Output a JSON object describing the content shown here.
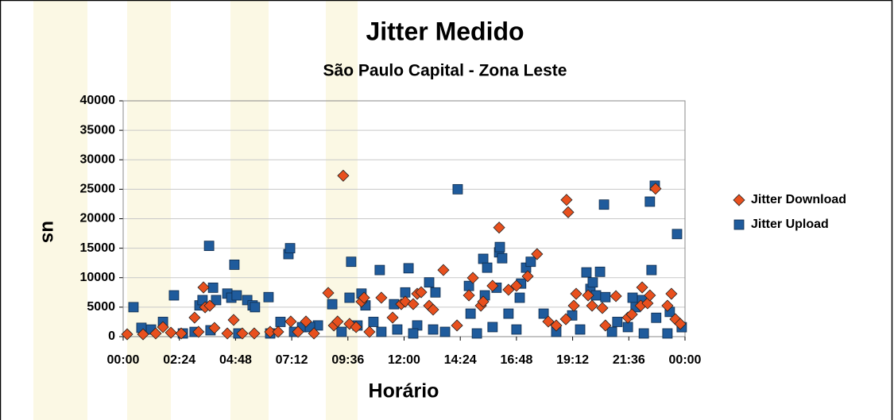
{
  "chart_data": {
    "type": "scatter",
    "title": "Jitter Medido",
    "subtitle": "São Paulo Capital - Zona Leste",
    "x_label": "Horário",
    "y_label": "us",
    "xlim": [
      0,
      24
    ],
    "ylim": [
      0,
      40000
    ],
    "xticks": [
      {
        "value": 0,
        "label": "00:00"
      },
      {
        "value": 2.4,
        "label": "02:24"
      },
      {
        "value": 4.8,
        "label": "04:48"
      },
      {
        "value": 7.2,
        "label": "07:12"
      },
      {
        "value": 9.6,
        "label": "09:36"
      },
      {
        "value": 12,
        "label": "12:00"
      },
      {
        "value": 14.4,
        "label": "14:24"
      },
      {
        "value": 16.8,
        "label": "16:48"
      },
      {
        "value": 19.2,
        "label": "19:12"
      },
      {
        "value": 21.6,
        "label": "21:36"
      },
      {
        "value": 24,
        "label": "00:00"
      }
    ],
    "yticks": [
      0,
      5000,
      10000,
      15000,
      20000,
      25000,
      30000,
      35000,
      40000
    ],
    "grid": true,
    "legend": "right",
    "series": [
      {
        "name": "Jitter Download",
        "color": "#e8501e",
        "marker": "diamond",
        "x": [
          0.17,
          0.85,
          1.39,
          1.7,
          2.04,
          2.48,
          3.05,
          3.22,
          3.43,
          3.5,
          3.7,
          3.9,
          4.45,
          4.72,
          5.09,
          5.6,
          6.28,
          6.62,
          7.16,
          7.47,
          7.81,
          8.15,
          8.76,
          9.0,
          9.16,
          9.4,
          9.67,
          9.95,
          10.18,
          10.29,
          10.52,
          11.03,
          11.51,
          11.88,
          12.05,
          12.39,
          12.56,
          12.73,
          13.07,
          13.24,
          13.68,
          14.26,
          14.77,
          14.94,
          15.28,
          15.38,
          15.78,
          16.06,
          16.46,
          16.8,
          17.28,
          17.68,
          18.16,
          18.5,
          18.91,
          18.94,
          19.01,
          19.25,
          19.35,
          19.86,
          20.03,
          20.47,
          20.6,
          21.05,
          21.56,
          21.73,
          22.11,
          22.17,
          22.4,
          22.5,
          22.74,
          23.25,
          23.42,
          23.59,
          23.8
        ],
        "values": [
          400,
          400,
          540,
          1620,
          670,
          540,
          3230,
          810,
          8350,
          4980,
          5250,
          1480,
          540,
          2830,
          540,
          540,
          810,
          810,
          2560,
          810,
          2560,
          540,
          7410,
          1890,
          2560,
          27300,
          2160,
          1620,
          5930,
          6600,
          810,
          6600,
          3230,
          5520,
          5930,
          5520,
          7270,
          7540,
          5250,
          4580,
          11300,
          1890,
          7000,
          9970,
          5250,
          5930,
          8620,
          18500,
          7950,
          8620,
          10240,
          14000,
          2560,
          1890,
          2960,
          23200,
          21100,
          5250,
          7270,
          7000,
          5250,
          4850,
          1890,
          6870,
          3230,
          3770,
          5250,
          8350,
          5660,
          7000,
          25100,
          5250,
          7270,
          2960,
          2160
        ]
      },
      {
        "name": "Jitter Upload",
        "color": "#1f5b9c",
        "marker": "square",
        "x": [
          0.44,
          0.78,
          1.19,
          1.7,
          2.17,
          3.05,
          3.26,
          3.39,
          3.67,
          3.84,
          3.97,
          4.45,
          4.62,
          4.75,
          4.85,
          5.3,
          5.53,
          5.63,
          6.21,
          6.72,
          7.06,
          7.13,
          7.64,
          8.32,
          8.93,
          9.67,
          9.74,
          10.18,
          10.35,
          10.69,
          10.96,
          11.57,
          12.05,
          12.19,
          12.56,
          13.07,
          13.34,
          14.29,
          14.77,
          14.84,
          15.38,
          15.45,
          15.55,
          15.95,
          16.06,
          16.09,
          16.19,
          16.46,
          16.94,
          17.0,
          17.21,
          17.41,
          17.96,
          19.18,
          19.79,
          19.96,
          20.06,
          20.2,
          20.37,
          20.54,
          20.6,
          21.11,
          21.76,
          21.89,
          22.17,
          22.5,
          22.57,
          22.71,
          22.77,
          23.35,
          23.66,
          23.86,
          2.55,
          3.73,
          4.92,
          6.28,
          7.3,
          7.98,
          9.33,
          10.01,
          11.03,
          11.71,
          12.39,
          13.24,
          13.75,
          15.11,
          15.78,
          16.8,
          18.5,
          19.52,
          20.88,
          21.56,
          22.24,
          23.25
        ],
        "values": [
          5000,
          1500,
          1200,
          2500,
          7000,
          800,
          5300,
          6200,
          15400,
          8300,
          6200,
          7300,
          6600,
          12200,
          7000,
          6200,
          5300,
          5000,
          6700,
          2500,
          14000,
          15000,
          1600,
          1900,
          5500,
          6600,
          12700,
          7300,
          5300,
          2500,
          11300,
          5500,
          7500,
          11600,
          1900,
          9200,
          7500,
          25000,
          8600,
          3900,
          13200,
          7000,
          11700,
          8300,
          14300,
          15200,
          13300,
          3900,
          6600,
          9000,
          11700,
          12700,
          3900,
          3600,
          10900,
          8100,
          9200,
          7000,
          11000,
          22400,
          6700,
          2500,
          6600,
          5000,
          6200,
          22900,
          11300,
          25600,
          3200,
          4200,
          17400,
          1600,
          540,
          1080,
          540,
          540,
          810,
          1620,
          810,
          1890,
          810,
          1210,
          540,
          1210,
          810,
          540,
          1620,
          1210,
          810,
          1210,
          810,
          1620,
          540,
          540
        ]
      }
    ]
  }
}
